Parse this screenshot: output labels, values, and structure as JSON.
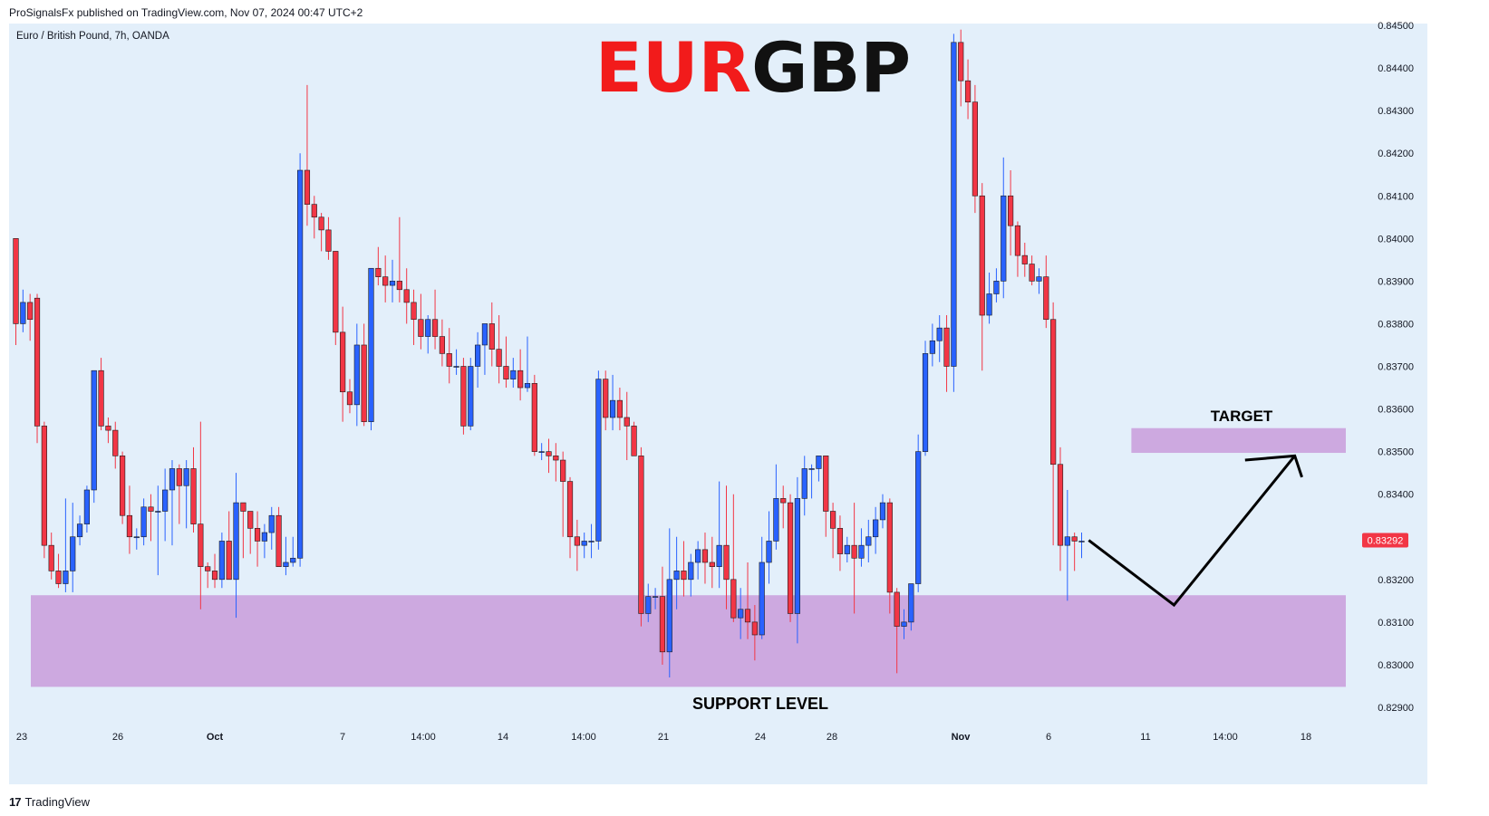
{
  "header": {
    "publisher_line": "ProSignalsFx published on TradingView.com, Nov 07, 2024 00:47 UTC+2",
    "symbol_line": "Euro / British Pound, 7h, OANDA"
  },
  "footer": {
    "brand": "TradingView",
    "logo_glyph": "17"
  },
  "colors": {
    "background": "#e3effa",
    "up_candle": "#2962ff",
    "down_candle": "#f23645",
    "zone": "#cda9e0",
    "title_red": "#f21b1b",
    "title_black": "#111111",
    "price_label_bg": "#f23645"
  },
  "chart_data": {
    "type": "candlestick",
    "title_parts": [
      "EUR",
      "GBP"
    ],
    "ylim": [
      0.8285,
      0.8451
    ],
    "y_ticks": [
      "0.84500",
      "0.84400",
      "0.84300",
      "0.84200",
      "0.84100",
      "0.84000",
      "0.83900",
      "0.83800",
      "0.83700",
      "0.83600",
      "0.83500",
      "0.83400",
      "0.83200",
      "0.83100",
      "0.83000",
      "0.82900"
    ],
    "x_ticks": [
      "23",
      "26",
      "Oct",
      "7",
      "14:00",
      "14",
      "14:00",
      "21",
      "24",
      "28",
      "Nov",
      "6",
      "11",
      "14:00",
      "18"
    ],
    "last_price": "0.83292",
    "candles": [
      [
        0.84,
        0.84,
        0.8375,
        0.838
      ],
      [
        0.838,
        0.8388,
        0.8378,
        0.8385
      ],
      [
        0.8385,
        0.8387,
        0.8376,
        0.8381
      ],
      [
        0.8386,
        0.8387,
        0.8352,
        0.8356
      ],
      [
        0.8356,
        0.8357,
        0.8325,
        0.8328
      ],
      [
        0.8328,
        0.8331,
        0.832,
        0.8322
      ],
      [
        0.8322,
        0.8326,
        0.8318,
        0.8319
      ],
      [
        0.8319,
        0.8339,
        0.8317,
        0.8322
      ],
      [
        0.8322,
        0.8338,
        0.8317,
        0.833
      ],
      [
        0.833,
        0.8335,
        0.8328,
        0.8333
      ],
      [
        0.8333,
        0.8342,
        0.8331,
        0.8341
      ],
      [
        0.8341,
        0.8369,
        0.8338,
        0.8369
      ],
      [
        0.8369,
        0.8372,
        0.8355,
        0.8356
      ],
      [
        0.8356,
        0.8358,
        0.8352,
        0.8355
      ],
      [
        0.8355,
        0.8357,
        0.8346,
        0.8349
      ],
      [
        0.8349,
        0.835,
        0.8333,
        0.8335
      ],
      [
        0.8335,
        0.8342,
        0.8326,
        0.833
      ],
      [
        0.833,
        0.8332,
        0.8327,
        0.833
      ],
      [
        0.833,
        0.8339,
        0.8328,
        0.8337
      ],
      [
        0.8337,
        0.834,
        0.8329,
        0.8336
      ],
      [
        0.8336,
        0.8342,
        0.8321,
        0.8336
      ],
      [
        0.8336,
        0.8346,
        0.8329,
        0.8341
      ],
      [
        0.8341,
        0.8348,
        0.8328,
        0.8346
      ],
      [
        0.8346,
        0.8347,
        0.8333,
        0.8342
      ],
      [
        0.8342,
        0.8348,
        0.8332,
        0.8346
      ],
      [
        0.8346,
        0.8351,
        0.8331,
        0.8333
      ],
      [
        0.8333,
        0.8357,
        0.8313,
        0.8323
      ],
      [
        0.8323,
        0.8324,
        0.8318,
        0.8322
      ],
      [
        0.8322,
        0.8326,
        0.8318,
        0.832
      ],
      [
        0.832,
        0.8331,
        0.8318,
        0.8329
      ],
      [
        0.8329,
        0.8336,
        0.832,
        0.832
      ],
      [
        0.832,
        0.8345,
        0.8311,
        0.8338
      ],
      [
        0.8338,
        0.8338,
        0.8325,
        0.8336
      ],
      [
        0.8336,
        0.8336,
        0.8326,
        0.8332
      ],
      [
        0.8332,
        0.8336,
        0.8323,
        0.8329
      ],
      [
        0.8329,
        0.8333,
        0.8325,
        0.8331
      ],
      [
        0.8331,
        0.8337,
        0.8327,
        0.8335
      ],
      [
        0.8335,
        0.8337,
        0.8323,
        0.8323
      ],
      [
        0.8323,
        0.833,
        0.8321,
        0.8324
      ],
      [
        0.8324,
        0.833,
        0.8323,
        0.8325
      ],
      [
        0.8325,
        0.842,
        0.8323,
        0.8416
      ],
      [
        0.8416,
        0.8436,
        0.8403,
        0.8408
      ],
      [
        0.8408,
        0.841,
        0.84,
        0.8405
      ],
      [
        0.8405,
        0.8406,
        0.8397,
        0.8402
      ],
      [
        0.8402,
        0.8405,
        0.8395,
        0.8397
      ],
      [
        0.8397,
        0.8397,
        0.8375,
        0.8378
      ],
      [
        0.8378,
        0.8384,
        0.8357,
        0.8364
      ],
      [
        0.8364,
        0.8367,
        0.8359,
        0.8361
      ],
      [
        0.8361,
        0.838,
        0.8356,
        0.8375
      ],
      [
        0.8375,
        0.838,
        0.8356,
        0.8357
      ],
      [
        0.8357,
        0.8393,
        0.8355,
        0.8393
      ],
      [
        0.8393,
        0.8398,
        0.8389,
        0.8391
      ],
      [
        0.8391,
        0.8396,
        0.8385,
        0.8389
      ],
      [
        0.8389,
        0.8395,
        0.8385,
        0.839
      ],
      [
        0.839,
        0.8405,
        0.8385,
        0.8388
      ],
      [
        0.8388,
        0.8393,
        0.838,
        0.8385
      ],
      [
        0.8385,
        0.8388,
        0.8375,
        0.8381
      ],
      [
        0.8381,
        0.8387,
        0.8374,
        0.8377
      ],
      [
        0.8377,
        0.8382,
        0.8373,
        0.8381
      ],
      [
        0.8381,
        0.8388,
        0.8374,
        0.8377
      ],
      [
        0.8377,
        0.8381,
        0.837,
        0.8373
      ],
      [
        0.8373,
        0.8379,
        0.8366,
        0.837
      ],
      [
        0.837,
        0.8374,
        0.8368,
        0.837
      ],
      [
        0.837,
        0.8372,
        0.8354,
        0.8356
      ],
      [
        0.8356,
        0.8372,
        0.8355,
        0.837
      ],
      [
        0.837,
        0.8378,
        0.8365,
        0.8375
      ],
      [
        0.8375,
        0.838,
        0.8368,
        0.838
      ],
      [
        0.838,
        0.8385,
        0.837,
        0.8374
      ],
      [
        0.8374,
        0.8382,
        0.8366,
        0.837
      ],
      [
        0.837,
        0.8377,
        0.8365,
        0.8367
      ],
      [
        0.8367,
        0.8372,
        0.8365,
        0.8369
      ],
      [
        0.8369,
        0.8374,
        0.8362,
        0.8365
      ],
      [
        0.8365,
        0.8377,
        0.8364,
        0.8366
      ],
      [
        0.8366,
        0.8368,
        0.8349,
        0.835
      ],
      [
        0.835,
        0.8352,
        0.8348,
        0.835
      ],
      [
        0.835,
        0.8353,
        0.8345,
        0.8349
      ],
      [
        0.8349,
        0.8352,
        0.8343,
        0.8348
      ],
      [
        0.8348,
        0.835,
        0.833,
        0.8343
      ],
      [
        0.8343,
        0.8344,
        0.8325,
        0.833
      ],
      [
        0.833,
        0.8334,
        0.8322,
        0.8328
      ],
      [
        0.8328,
        0.8331,
        0.8325,
        0.8329
      ],
      [
        0.8329,
        0.8333,
        0.8325,
        0.8329
      ],
      [
        0.8329,
        0.8369,
        0.8327,
        0.8367
      ],
      [
        0.8367,
        0.8369,
        0.8355,
        0.8358
      ],
      [
        0.8358,
        0.8368,
        0.8355,
        0.8362
      ],
      [
        0.8362,
        0.8365,
        0.8355,
        0.8358
      ],
      [
        0.8358,
        0.8364,
        0.8348,
        0.8356
      ],
      [
        0.8356,
        0.8357,
        0.8349,
        0.8349
      ],
      [
        0.8349,
        0.8351,
        0.8309,
        0.8312
      ],
      [
        0.8312,
        0.8319,
        0.831,
        0.8316
      ],
      [
        0.8316,
        0.8318,
        0.8313,
        0.8316
      ],
      [
        0.8316,
        0.8323,
        0.83,
        0.8303
      ],
      [
        0.8303,
        0.8332,
        0.8297,
        0.832
      ],
      [
        0.832,
        0.833,
        0.8313,
        0.8322
      ],
      [
        0.8322,
        0.8329,
        0.8316,
        0.832
      ],
      [
        0.832,
        0.8326,
        0.8316,
        0.8324
      ],
      [
        0.8324,
        0.8329,
        0.832,
        0.8327
      ],
      [
        0.8327,
        0.8331,
        0.8319,
        0.8324
      ],
      [
        0.8324,
        0.833,
        0.8318,
        0.8323
      ],
      [
        0.8323,
        0.8343,
        0.8318,
        0.8328
      ],
      [
        0.8328,
        0.8342,
        0.8313,
        0.832
      ],
      [
        0.832,
        0.834,
        0.831,
        0.8311
      ],
      [
        0.8311,
        0.8318,
        0.8306,
        0.8313
      ],
      [
        0.8313,
        0.8324,
        0.8306,
        0.831
      ],
      [
        0.831,
        0.8314,
        0.8301,
        0.8307
      ],
      [
        0.8307,
        0.833,
        0.8306,
        0.8324
      ],
      [
        0.8324,
        0.8336,
        0.8319,
        0.8329
      ],
      [
        0.8329,
        0.8347,
        0.8327,
        0.8339
      ],
      [
        0.8339,
        0.8342,
        0.8332,
        0.8338
      ],
      [
        0.8338,
        0.834,
        0.831,
        0.8312
      ],
      [
        0.8312,
        0.8344,
        0.8305,
        0.8339
      ],
      [
        0.8339,
        0.8349,
        0.8335,
        0.8346
      ],
      [
        0.8346,
        0.8347,
        0.8339,
        0.8346
      ],
      [
        0.8346,
        0.8349,
        0.8343,
        0.8349
      ],
      [
        0.8349,
        0.8348,
        0.833,
        0.8336
      ],
      [
        0.8336,
        0.8338,
        0.8325,
        0.8332
      ],
      [
        0.8332,
        0.8335,
        0.8322,
        0.8326
      ],
      [
        0.8326,
        0.833,
        0.8324,
        0.8328
      ],
      [
        0.8328,
        0.8338,
        0.8312,
        0.8325
      ],
      [
        0.8325,
        0.8332,
        0.8323,
        0.8328
      ],
      [
        0.8328,
        0.8334,
        0.8324,
        0.833
      ],
      [
        0.833,
        0.8337,
        0.8326,
        0.8334
      ],
      [
        0.8334,
        0.834,
        0.8332,
        0.8338
      ],
      [
        0.8338,
        0.8339,
        0.8312,
        0.8317
      ],
      [
        0.8317,
        0.8318,
        0.8298,
        0.8309
      ],
      [
        0.8309,
        0.8313,
        0.8306,
        0.831
      ],
      [
        0.831,
        0.8318,
        0.8308,
        0.8319
      ],
      [
        0.8319,
        0.8354,
        0.8317,
        0.835
      ],
      [
        0.835,
        0.8376,
        0.8349,
        0.8373
      ],
      [
        0.8373,
        0.838,
        0.837,
        0.8376
      ],
      [
        0.8376,
        0.8382,
        0.8371,
        0.8379
      ],
      [
        0.8379,
        0.8382,
        0.8364,
        0.837
      ],
      [
        0.837,
        0.8448,
        0.8364,
        0.8446
      ],
      [
        0.8446,
        0.8449,
        0.8431,
        0.8437
      ],
      [
        0.8437,
        0.8442,
        0.8428,
        0.8432
      ],
      [
        0.8432,
        0.8436,
        0.8406,
        0.841
      ],
      [
        0.841,
        0.8413,
        0.8369,
        0.8382
      ],
      [
        0.8382,
        0.8392,
        0.838,
        0.8387
      ],
      [
        0.8387,
        0.8393,
        0.8385,
        0.839
      ],
      [
        0.839,
        0.8419,
        0.8386,
        0.841
      ],
      [
        0.841,
        0.8416,
        0.8396,
        0.8403
      ],
      [
        0.8403,
        0.8404,
        0.8391,
        0.8396
      ],
      [
        0.8396,
        0.8399,
        0.8391,
        0.8394
      ],
      [
        0.8394,
        0.8396,
        0.8389,
        0.839
      ],
      [
        0.839,
        0.8393,
        0.8387,
        0.8391
      ],
      [
        0.8391,
        0.8396,
        0.8379,
        0.8381
      ],
      [
        0.8381,
        0.8385,
        0.8328,
        0.8347
      ],
      [
        0.8347,
        0.8351,
        0.8322,
        0.8328
      ],
      [
        0.8328,
        0.8341,
        0.8315,
        0.833
      ],
      [
        0.833,
        0.8331,
        0.8322,
        0.8329
      ],
      [
        0.8329,
        0.8331,
        0.8325,
        0.8329
      ]
    ],
    "zones": [
      {
        "name": "support",
        "y_low": 0.82948,
        "y_high": 0.83163,
        "label": "SUPPORT LEVEL"
      },
      {
        "name": "target",
        "y_low": 0.83497,
        "y_high": 0.83555,
        "label": "TARGET"
      }
    ],
    "projection_path": [
      {
        "bar": 151,
        "price": 0.83292
      },
      {
        "bar": 163,
        "price": 0.8314
      },
      {
        "bar": 180,
        "price": 0.8349
      }
    ],
    "arrowhead": {
      "tip": {
        "bar": 180,
        "price": 0.8349
      },
      "tail_1": {
        "bar": 173,
        "price": 0.8348
      },
      "tail_2": {
        "bar": 181,
        "price": 0.8344
      }
    }
  }
}
